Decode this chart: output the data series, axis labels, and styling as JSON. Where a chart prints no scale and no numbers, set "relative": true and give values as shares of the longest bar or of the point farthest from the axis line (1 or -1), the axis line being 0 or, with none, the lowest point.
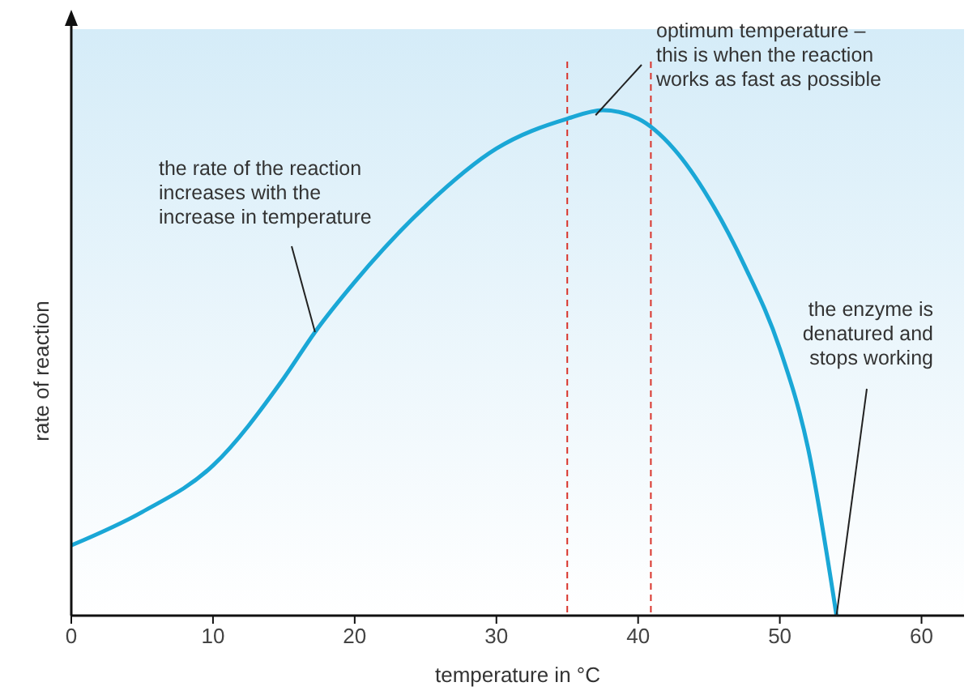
{
  "chart_data": {
    "type": "line",
    "relative": true,
    "xlabel": "temperature in °C",
    "ylabel": "rate of reaction",
    "xlim": [
      0,
      63
    ],
    "xticks": [
      0,
      10,
      20,
      30,
      40,
      50,
      60
    ],
    "x": [
      0,
      5,
      10,
      15,
      17.2,
      20,
      25,
      30,
      35,
      37.5,
      40,
      42.5,
      45,
      47.5,
      50,
      52,
      54
    ],
    "series": [
      {
        "color": "#1aa7d6",
        "values": [
          0.139,
          0.205,
          0.297,
          0.47,
          0.561,
          0.66,
          0.81,
          0.924,
          0.983,
          1,
          0.983,
          0.924,
          0.825,
          0.693,
          0.528,
          0.33,
          0
        ]
      }
    ],
    "ref_lines": [
      {
        "axis": "x",
        "value": 35,
        "color": "#d9342b",
        "line_style": "dashed"
      },
      {
        "axis": "x",
        "value": 40.9,
        "color": "#d9342b",
        "line_style": "dashed"
      }
    ],
    "annotations": [
      {
        "text": "the rate of the reaction\nincreases with the\nincrease in temperature",
        "x": 17.2,
        "y": 0.561
      },
      {
        "text": "optimum temperature –\nthis is when the reaction\nworks as fast as possible",
        "x": 37,
        "y": 0.99
      },
      {
        "text": "the enzyme is\ndenatured and\nstops working",
        "x": 54,
        "y": 0
      }
    ],
    "grid": false,
    "line_style": "solid"
  }
}
